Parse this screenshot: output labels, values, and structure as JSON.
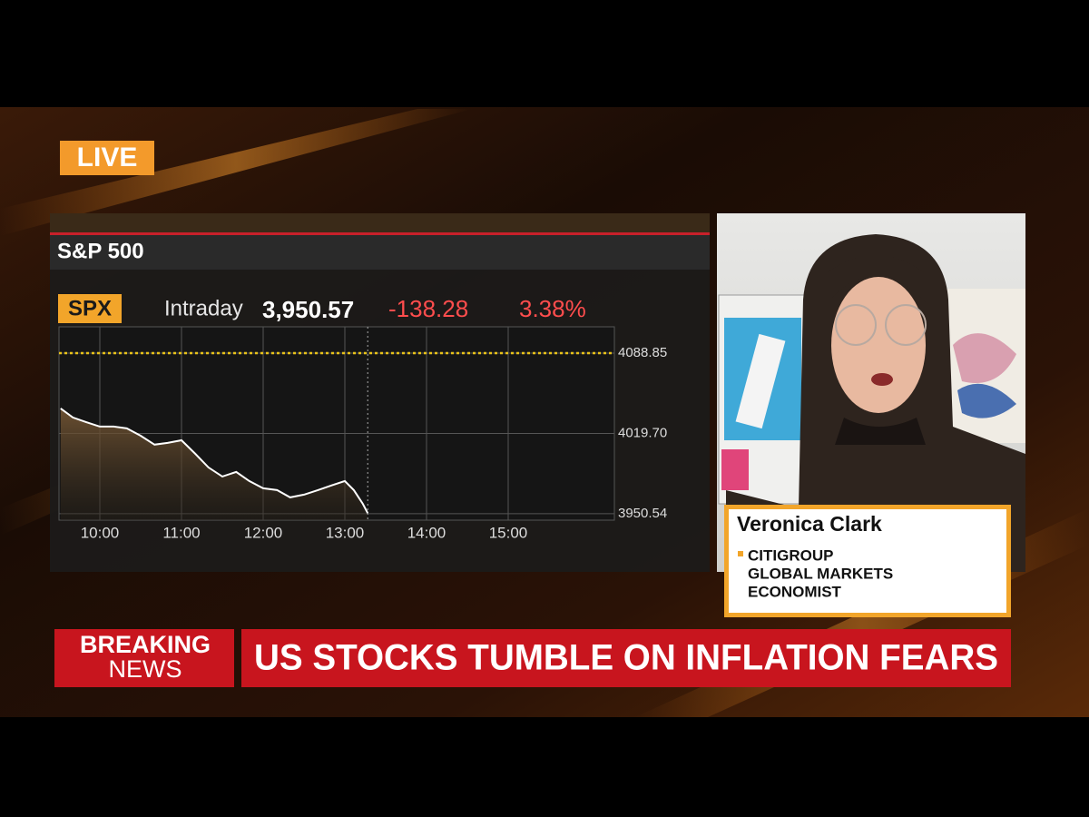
{
  "live_badge": "LIVE",
  "chart_data": {
    "type": "line",
    "title": "S&P 500",
    "ticker": "SPX",
    "period": "Intraday",
    "last_price": "3,950.57",
    "change": "-138.28",
    "change_percent": "3.38%",
    "x": [
      9.52,
      9.67,
      9.83,
      10,
      10.17,
      10.33,
      10.5,
      10.67,
      10.83,
      11,
      11.17,
      11.33,
      11.5,
      11.67,
      11.83,
      12,
      12.17,
      12.33,
      12.5,
      12.67,
      12.83,
      13,
      13.11,
      13.22,
      13.28
    ],
    "series": [
      {
        "color": "#ffffff",
        "values": [
          4041.2,
          4033.4,
          4029.5,
          4025.6,
          4025.6,
          4024,
          4017.7,
          4010,
          4011.5,
          4013.8,
          4002.1,
          3990.4,
          3982.6,
          3986.5,
          3978.7,
          3972.4,
          3970.9,
          3964.6,
          3967,
          3970.9,
          3974.8,
          3978.7,
          3970.9,
          3959.1,
          3951
        ]
      }
    ],
    "reference_line": 4088.85,
    "reference_color": "#e8c21a",
    "xlim": [
      9.5,
      16.3
    ],
    "ylim": [
      3945,
      4111.5
    ],
    "xticks": [
      {
        "value": 10,
        "label": "10:00"
      },
      {
        "value": 11,
        "label": "11:00"
      },
      {
        "value": 12,
        "label": "12:00"
      },
      {
        "value": 13,
        "label": "13:00"
      },
      {
        "value": 14,
        "label": "14:00"
      },
      {
        "value": 15,
        "label": "15:00"
      }
    ],
    "yticks": [
      3950.54,
      {
        "value": 4019.7,
        "label": "4019.70"
      },
      4088.85
    ],
    "grid": true
  },
  "guest": {
    "name": "Veronica Clark",
    "title_lines": [
      "CITIGROUP",
      "GLOBAL MARKETS",
      "ECONOMIST"
    ]
  },
  "ticker_bar": {
    "label_lines": [
      "BREAKING",
      "NEWS"
    ],
    "headline": "US STOCKS TUMBLE ON INFLATION FEARS"
  }
}
